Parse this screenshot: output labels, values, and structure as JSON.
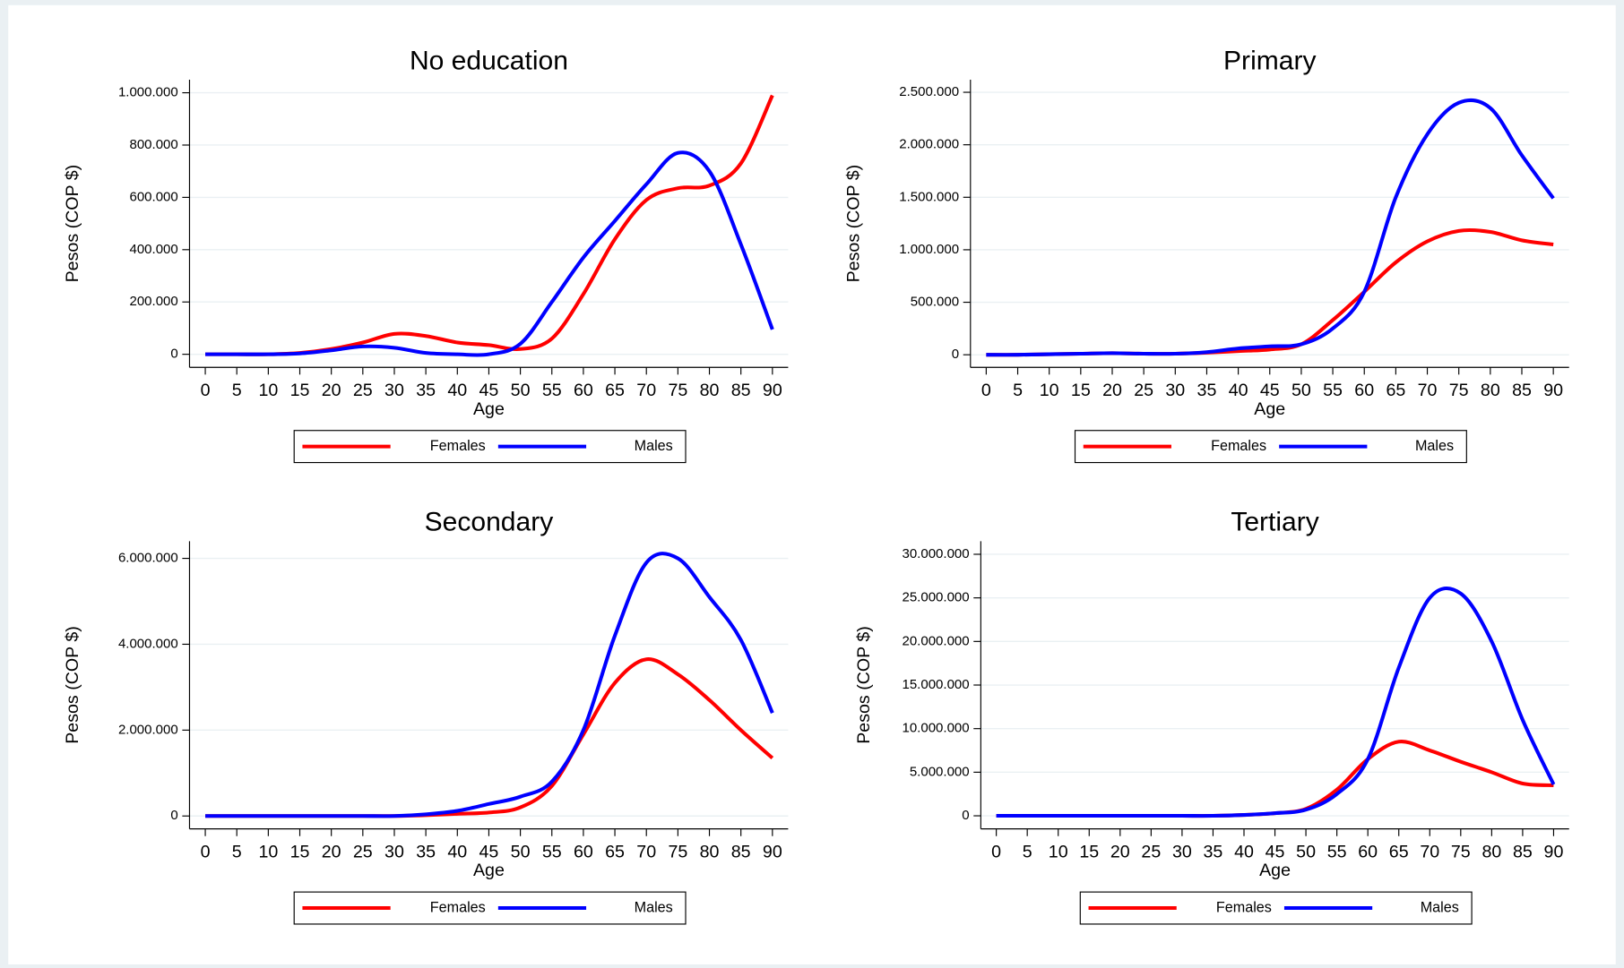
{
  "chart_data": [
    {
      "type": "line",
      "title": "No education",
      "x_label": "Age",
      "y_label": "Pesos (COP $)",
      "legend": "bottom",
      "grid": true,
      "x": [
        0,
        5,
        10,
        15,
        20,
        25,
        30,
        35,
        40,
        45,
        50,
        55,
        60,
        65,
        70,
        75,
        80,
        85,
        90
      ],
      "xlim": [
        -2.5,
        92.5
      ],
      "xticks": [
        0,
        5,
        10,
        15,
        20,
        25,
        30,
        35,
        40,
        45,
        50,
        55,
        60,
        65,
        70,
        75,
        80,
        85,
        90
      ],
      "ylim": [
        -50000,
        1050000
      ],
      "yticks": [
        0,
        {
          "value": 200000,
          "label": "200.000"
        },
        {
          "value": 400000,
          "label": "400.000"
        },
        {
          "value": 600000,
          "label": "600.000"
        },
        {
          "value": 800000,
          "label": "800.000"
        },
        {
          "value": 1000000,
          "label": "1.000.000"
        }
      ],
      "series": [
        {
          "name": "Females",
          "color": "#ff0000",
          "values": [
            0,
            0,
            0,
            5000,
            20000,
            45000,
            78000,
            70000,
            45000,
            35000,
            20000,
            60000,
            230000,
            440000,
            590000,
            635000,
            645000,
            730000,
            990000
          ]
        },
        {
          "name": "Males",
          "color": "#0000ff",
          "values": [
            0,
            0,
            0,
            3000,
            15000,
            30000,
            25000,
            5000,
            0,
            0,
            40000,
            200000,
            370000,
            510000,
            650000,
            770000,
            700000,
            420000,
            95000
          ]
        }
      ]
    },
    {
      "type": "line",
      "title": "Primary",
      "x_label": "Age",
      "y_label": "Pesos (COP $)",
      "legend": "bottom",
      "grid": true,
      "x": [
        0,
        5,
        10,
        15,
        20,
        25,
        30,
        35,
        40,
        45,
        50,
        55,
        60,
        65,
        70,
        75,
        80,
        85,
        90
      ],
      "xlim": [
        -2.5,
        92.5
      ],
      "xticks": [
        0,
        5,
        10,
        15,
        20,
        25,
        30,
        35,
        40,
        45,
        50,
        55,
        60,
        65,
        70,
        75,
        80,
        85,
        90
      ],
      "ylim": [
        -120000,
        2620000
      ],
      "yticks": [
        0,
        {
          "value": 500000,
          "label": "500.000"
        },
        {
          "value": 1000000,
          "label": "1.000.000"
        },
        {
          "value": 1500000,
          "label": "1.500.000"
        },
        {
          "value": 2000000,
          "label": "2.000.000"
        },
        {
          "value": 2500000,
          "label": "2.500.000"
        }
      ],
      "series": [
        {
          "name": "Females",
          "color": "#ff0000",
          "values": [
            0,
            0,
            5000,
            10000,
            15000,
            10000,
            10000,
            20000,
            35000,
            50000,
            100000,
            330000,
            600000,
            880000,
            1080000,
            1180000,
            1170000,
            1090000,
            1050000
          ]
        },
        {
          "name": "Males",
          "color": "#0000ff",
          "values": [
            0,
            0,
            5000,
            10000,
            15000,
            10000,
            10000,
            25000,
            60000,
            80000,
            100000,
            250000,
            600000,
            1500000,
            2100000,
            2400000,
            2350000,
            1900000,
            1490000
          ]
        }
      ]
    },
    {
      "type": "line",
      "title": "Secondary",
      "x_label": "Age",
      "y_label": "Pesos (COP $)",
      "legend": "bottom",
      "grid": true,
      "x": [
        0,
        5,
        10,
        15,
        20,
        25,
        30,
        35,
        40,
        45,
        50,
        55,
        60,
        65,
        70,
        75,
        80,
        85,
        90
      ],
      "xlim": [
        -2.5,
        92.5
      ],
      "xticks": [
        0,
        5,
        10,
        15,
        20,
        25,
        30,
        35,
        40,
        45,
        50,
        55,
        60,
        65,
        70,
        75,
        80,
        85,
        90
      ],
      "ylim": [
        -300000,
        6400000
      ],
      "yticks": [
        0,
        {
          "value": 2000000,
          "label": "2.000.000"
        },
        {
          "value": 4000000,
          "label": "4.000.000"
        },
        {
          "value": 6000000,
          "label": "6.000.000"
        }
      ],
      "series": [
        {
          "name": "Females",
          "color": "#ff0000",
          "values": [
            0,
            0,
            0,
            0,
            0,
            0,
            0,
            20000,
            50000,
            80000,
            200000,
            700000,
            1900000,
            3100000,
            3650000,
            3300000,
            2700000,
            2000000,
            1350000
          ]
        },
        {
          "name": "Males",
          "color": "#0000ff",
          "values": [
            0,
            0,
            0,
            0,
            0,
            0,
            0,
            40000,
            120000,
            280000,
            450000,
            800000,
            2000000,
            4200000,
            5900000,
            6000000,
            5100000,
            4100000,
            2400000
          ]
        }
      ]
    },
    {
      "type": "line",
      "title": "Tertiary",
      "x_label": "Age",
      "y_label": "Pesos (COP $)",
      "legend": "bottom",
      "grid": true,
      "x": [
        0,
        5,
        10,
        15,
        20,
        25,
        30,
        35,
        40,
        45,
        50,
        55,
        60,
        65,
        70,
        75,
        80,
        85,
        90
      ],
      "xlim": [
        -2.5,
        92.5
      ],
      "xticks": [
        0,
        5,
        10,
        15,
        20,
        25,
        30,
        35,
        40,
        45,
        50,
        55,
        60,
        65,
        70,
        75,
        80,
        85,
        90
      ],
      "ylim": [
        -1500000,
        31500000
      ],
      "yticks": [
        0,
        {
          "value": 5000000,
          "label": "5.000.000"
        },
        {
          "value": 10000000,
          "label": "10.000.000"
        },
        {
          "value": 15000000,
          "label": "15.000.000"
        },
        {
          "value": 20000000,
          "label": "20.000.000"
        },
        {
          "value": 25000000,
          "label": "25.000.000"
        },
        {
          "value": 30000000,
          "label": "30.000.000"
        }
      ],
      "series": [
        {
          "name": "Females",
          "color": "#ff0000",
          "values": [
            0,
            0,
            0,
            0,
            0,
            0,
            0,
            0,
            100000,
            300000,
            800000,
            3000000,
            6500000,
            8500000,
            7500000,
            6200000,
            5000000,
            3700000,
            3500000
          ]
        },
        {
          "name": "Males",
          "color": "#0000ff",
          "values": [
            0,
            0,
            0,
            0,
            0,
            0,
            0,
            0,
            100000,
            300000,
            700000,
            2500000,
            6500000,
            17000000,
            25000000,
            25500000,
            20000000,
            11000000,
            3600000
          ]
        }
      ]
    }
  ]
}
